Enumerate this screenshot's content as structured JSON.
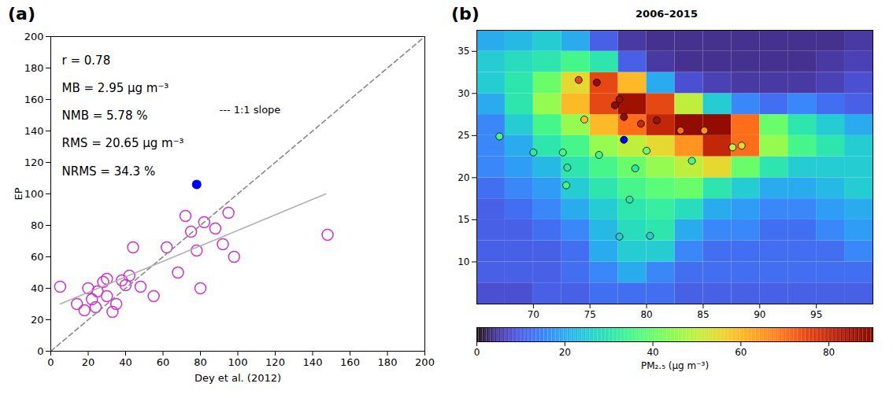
{
  "chart_data": [
    {
      "type": "scatter",
      "label": "(a)",
      "x_label": "Dey et al. (2012)",
      "y_label": "EP",
      "xlim": [
        0,
        200
      ],
      "ylim": [
        0,
        200
      ],
      "xticks": [
        0,
        20,
        40,
        60,
        80,
        100,
        120,
        140,
        160,
        180,
        200
      ],
      "yticks": [
        0,
        20,
        40,
        60,
        80,
        100,
        120,
        140,
        160,
        180,
        200
      ],
      "annotations": [
        "r = 0.78",
        "MB = 2.95 μg m⁻³",
        "NMB = 5.78 %",
        "RMS = 20.65 μg m⁻³",
        "NRMS = 34.3 %"
      ],
      "note": "--- 1:1 slope",
      "series": [
        {
          "type": "scatter",
          "color": "#cc33cc",
          "marker": "circle-open",
          "x": [
            5,
            14,
            18,
            22,
            24,
            25,
            28,
            30,
            33,
            35,
            38,
            40,
            42,
            44,
            48,
            55,
            62,
            68,
            72,
            75,
            78,
            80,
            82,
            88,
            92,
            95,
            98,
            148,
            20,
            30
          ],
          "values": [
            41,
            30,
            26,
            33,
            28,
            38,
            44,
            46,
            25,
            30,
            45,
            42,
            48,
            66,
            41,
            35,
            66,
            50,
            86,
            76,
            64,
            40,
            82,
            78,
            68,
            88,
            60,
            74,
            40,
            35
          ]
        },
        {
          "type": "scatter",
          "color": "#0000ff",
          "marker": "circle-filled",
          "x": [
            78
          ],
          "values": [
            106
          ]
        },
        {
          "type": "line",
          "color": "#888888",
          "line_style": "dashed",
          "x": [
            0,
            200
          ],
          "values": [
            0,
            200
          ]
        },
        {
          "type": "line",
          "color": "#b0b0b0",
          "line_style": "solid",
          "x": [
            5,
            147
          ],
          "values": [
            30,
            100
          ]
        }
      ]
    },
    {
      "type": "heatmap",
      "label": "(b)",
      "title": "2006–2015",
      "xlim": [
        65,
        100
      ],
      "ylim": [
        5,
        37.5
      ],
      "xticks": [
        70,
        75,
        80,
        85,
        90,
        95
      ],
      "yticks": [
        10,
        15,
        20,
        25,
        30,
        35
      ],
      "x": [
        66.25,
        68.75,
        71.25,
        73.75,
        76.25,
        78.75,
        81.25,
        83.75,
        86.25,
        88.75,
        91.25,
        93.75,
        96.25,
        98.75
      ],
      "y": [
        6.25,
        8.75,
        11.25,
        13.75,
        16.25,
        18.75,
        21.25,
        23.75,
        26.25,
        28.75,
        31.25,
        33.75,
        36.25
      ],
      "values": [
        [
          8,
          8,
          10,
          10,
          12,
          12,
          12,
          10,
          10,
          10,
          10,
          10,
          10,
          10
        ],
        [
          10,
          10,
          10,
          12,
          15,
          20,
          15,
          12,
          12,
          12,
          12,
          12,
          12,
          12
        ],
        [
          10,
          10,
          10,
          12,
          20,
          25,
          25,
          15,
          12,
          12,
          12,
          12,
          12,
          15
        ],
        [
          10,
          10,
          12,
          15,
          22,
          28,
          30,
          20,
          15,
          15,
          12,
          12,
          15,
          18
        ],
        [
          10,
          12,
          15,
          20,
          25,
          30,
          32,
          28,
          20,
          18,
          15,
          15,
          18,
          20
        ],
        [
          12,
          15,
          18,
          25,
          30,
          35,
          38,
          40,
          30,
          25,
          20,
          20,
          22,
          25
        ],
        [
          15,
          18,
          22,
          30,
          35,
          40,
          45,
          50,
          55,
          40,
          30,
          25,
          25,
          25
        ],
        [
          15,
          20,
          30,
          35,
          45,
          50,
          55,
          65,
          80,
          70,
          45,
          35,
          30,
          25
        ],
        [
          15,
          25,
          35,
          45,
          60,
          70,
          80,
          88,
          88,
          70,
          40,
          30,
          25,
          20
        ],
        [
          20,
          30,
          45,
          60,
          75,
          85,
          75,
          50,
          25,
          15,
          12,
          15,
          12,
          10
        ],
        [
          25,
          30,
          40,
          55,
          75,
          60,
          20,
          8,
          6,
          5,
          5,
          5,
          6,
          8
        ],
        [
          25,
          28,
          30,
          35,
          30,
          10,
          5,
          4,
          4,
          4,
          4,
          4,
          5,
          6
        ],
        [
          20,
          22,
          25,
          20,
          10,
          5,
          4,
          4,
          4,
          4,
          4,
          4,
          4,
          5
        ]
      ],
      "colorbar": {
        "range": [
          0,
          90
        ],
        "ticks": [
          0,
          20,
          40,
          60,
          80
        ],
        "label": "PM₂.₅ (μg m⁻³)",
        "color": "turbo"
      },
      "stations": {
        "x": [
          74.0,
          75.6,
          77.2,
          77.6,
          78.0,
          74.5,
          79.5,
          80.9,
          83.0,
          85.1,
          88.4,
          87.6,
          67.0,
          70.0,
          72.6,
          73.0,
          75.8,
          80.0,
          84.0,
          79.0,
          72.9,
          78.5,
          80.3,
          77.6
        ],
        "y": [
          31.6,
          31.3,
          28.6,
          29.3,
          27.2,
          26.9,
          26.4,
          26.8,
          25.6,
          25.6,
          23.8,
          23.6,
          24.9,
          23.0,
          23.0,
          21.2,
          22.7,
          23.2,
          22.0,
          21.1,
          19.1,
          17.4,
          13.1,
          13.0
        ],
        "values": [
          75,
          88,
          90,
          85,
          88,
          60,
          80,
          85,
          70,
          65,
          55,
          50,
          35,
          30,
          35,
          30,
          35,
          40,
          35,
          30,
          35,
          30,
          25,
          25
        ]
      },
      "highlight": {
        "x": [
          78.0
        ],
        "y": [
          24.5
        ],
        "color": "#0000ff"
      }
    }
  ]
}
